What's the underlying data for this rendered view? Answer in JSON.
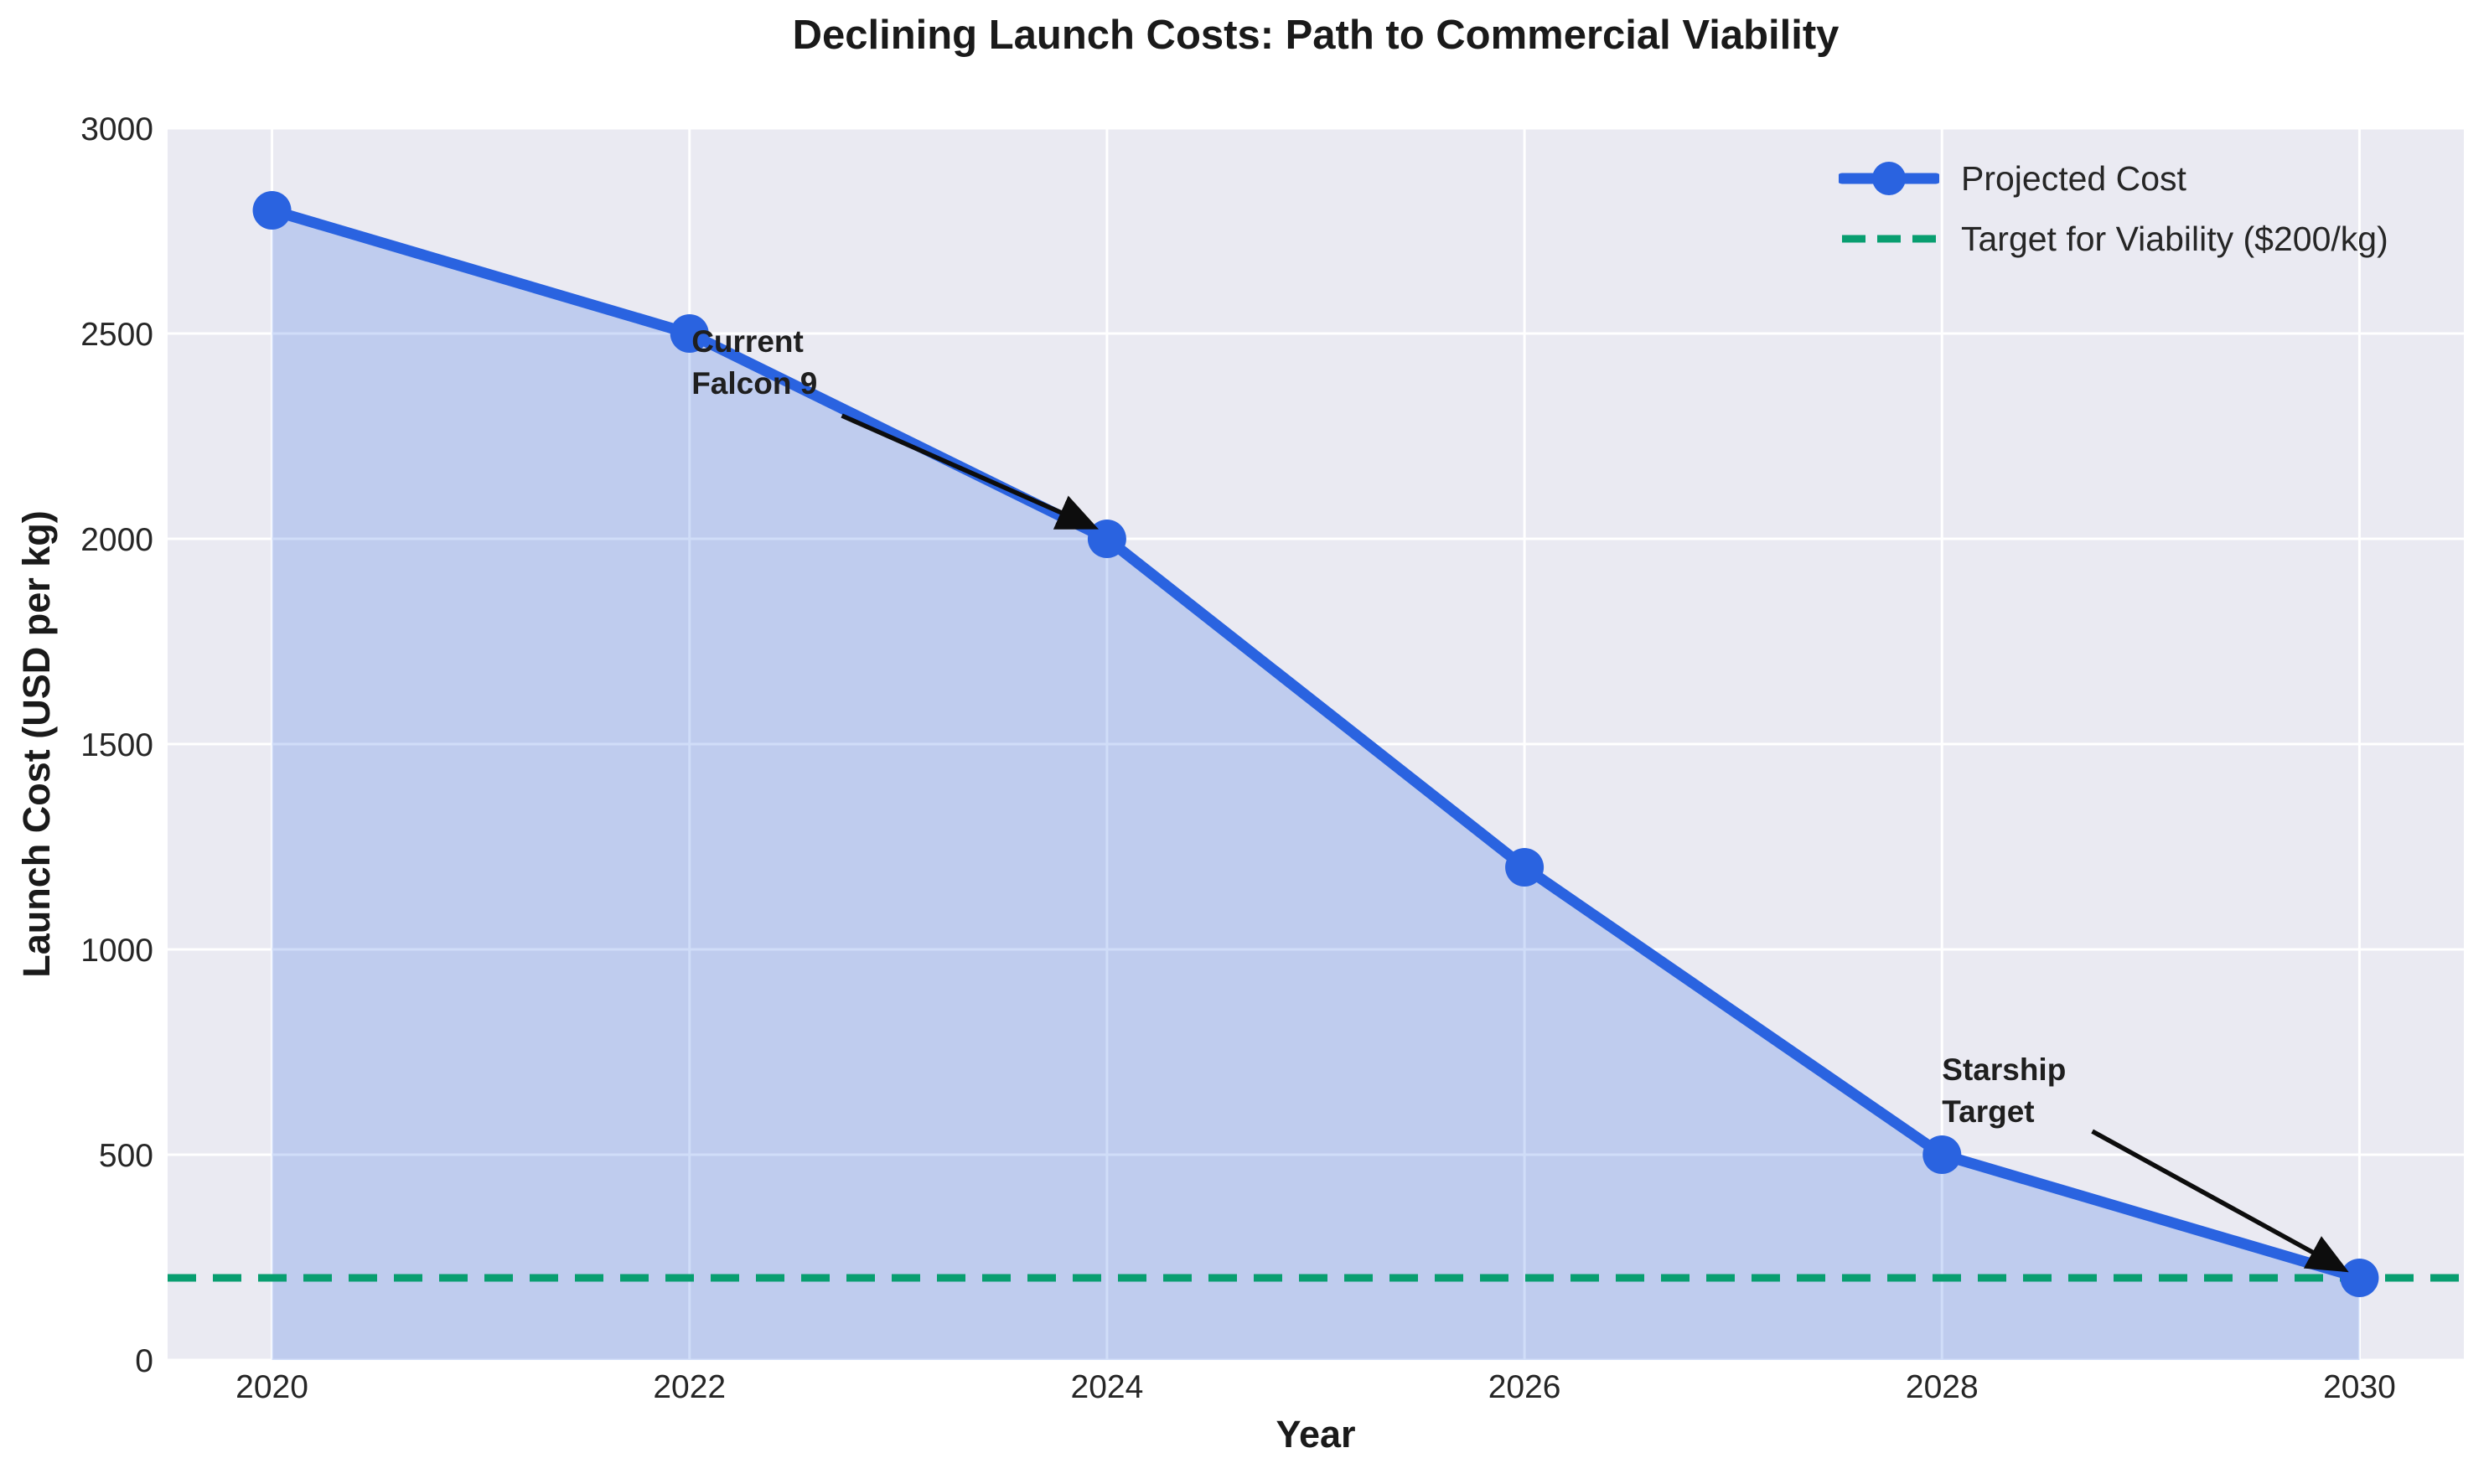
{
  "title": "Declining Launch Costs: Path to Commercial Viability",
  "chart_data": {
    "type": "line",
    "x": [
      2020,
      2022,
      2024,
      2026,
      2028,
      2030
    ],
    "series": [
      {
        "name": "Projected Cost",
        "values": [
          2800,
          2500,
          2000,
          1200,
          500,
          200
        ]
      }
    ],
    "target_line": {
      "label": "Target for Viability ($200/kg)",
      "value": 200,
      "style": "dashed"
    },
    "title": "Declining Launch Costs: Path to Commercial Viability",
    "xlabel": "Year",
    "ylabel": "Launch Cost (USD per kg)",
    "xlim": [
      2019.5,
      2030.5
    ],
    "ylim": [
      0,
      3000
    ],
    "xticks": [
      "2020",
      "2022",
      "2024",
      "2026",
      "2028",
      "2030"
    ],
    "xtick_values": [
      2020,
      2022,
      2024,
      2026,
      2028,
      2030
    ],
    "yticks": [
      "0",
      "500",
      "1000",
      "1500",
      "2000",
      "2500",
      "3000"
    ],
    "ytick_values": [
      0,
      500,
      1000,
      1500,
      2000,
      2500,
      3000
    ],
    "grid": true,
    "legend_position": "upper right",
    "fill_under_line": true,
    "annotations": [
      {
        "lines": [
          "Current",
          "Falcon 9"
        ],
        "xy": [
          2024,
          2000
        ],
        "xytext": [
          2022.01,
          2530
        ],
        "arrow_from": [
          2022.73,
          2300
        ],
        "arrow_to": [
          2023.93,
          2030
        ]
      },
      {
        "lines": [
          "Starship",
          "Target"
        ],
        "xy": [
          2030,
          200
        ],
        "xytext": [
          2028.0,
          757
        ],
        "arrow_from": [
          2028.72,
          557
        ],
        "arrow_to": [
          2029.92,
          222
        ]
      }
    ],
    "colors": {
      "line": "#2a63e0",
      "marker": "#2a63e0",
      "fill": "rgba(42,99,224,0.22)",
      "target": "#089e70",
      "plot_bg": "#eaeaf2",
      "grid": "#ffffff",
      "text": "#262626",
      "arrow": "#0d0d0d"
    }
  },
  "legend": {
    "items": [
      {
        "label": "Projected Cost"
      },
      {
        "label": "Target for Viability ($200/kg)"
      }
    ]
  }
}
